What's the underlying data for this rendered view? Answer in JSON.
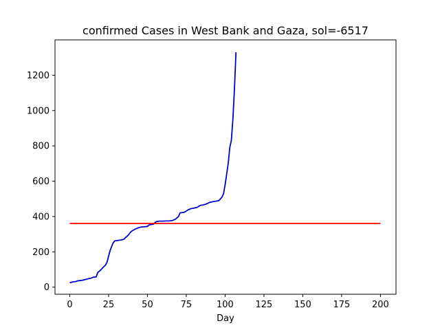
{
  "chart_data": {
    "type": "line",
    "title": "confirmed Cases in West Bank and Gaza, sol=-6517",
    "xlabel": "Day",
    "ylabel": "",
    "xlim": [
      -9.5,
      210
    ],
    "ylim": [
      -40,
      1400
    ],
    "xticks": [
      0,
      25,
      50,
      75,
      100,
      125,
      150,
      175,
      200
    ],
    "yticks": [
      0,
      200,
      400,
      600,
      800,
      1000,
      1200
    ],
    "grid": false,
    "legend": "none",
    "series": [
      {
        "color": "#0000cc",
        "x": [
          0,
          2,
          4,
          5,
          8,
          10,
          12,
          14,
          15,
          17,
          18,
          19,
          20,
          21,
          22,
          23,
          24,
          25,
          26,
          27,
          28,
          29,
          30,
          32,
          34,
          35,
          36,
          37,
          38,
          39,
          40,
          42,
          44,
          46,
          48,
          50,
          51,
          52,
          54,
          55,
          56,
          57,
          58,
          60,
          62,
          64,
          66,
          68,
          70,
          71,
          72,
          73,
          74,
          76,
          78,
          79,
          80,
          82,
          84,
          86,
          88,
          90,
          92,
          94,
          96,
          97,
          98,
          99,
          100,
          101,
          102,
          103,
          104,
          105,
          106,
          107
        ],
        "y": [
          25,
          30,
          32,
          36,
          39,
          43,
          48,
          52,
          56,
          58,
          83,
          90,
          98,
          108,
          117,
          125,
          142,
          175,
          208,
          232,
          252,
          262,
          263,
          266,
          269,
          272,
          282,
          289,
          298,
          310,
          318,
          328,
          336,
          341,
          342,
          344,
          352,
          354,
          357,
          367,
          372,
          373,
          374,
          374,
          375,
          375,
          377,
          385,
          400,
          420,
          422,
          423,
          425,
          437,
          445,
          446,
          448,
          452,
          463,
          466,
          471,
          480,
          484,
          487,
          490,
          500,
          510,
          530,
          580,
          640,
          700,
          790,
          830,
          950,
          1120,
          1330
        ]
      },
      {
        "color": "#ff0000",
        "x": [
          0,
          200
        ],
        "y": [
          361,
          361
        ]
      }
    ]
  }
}
